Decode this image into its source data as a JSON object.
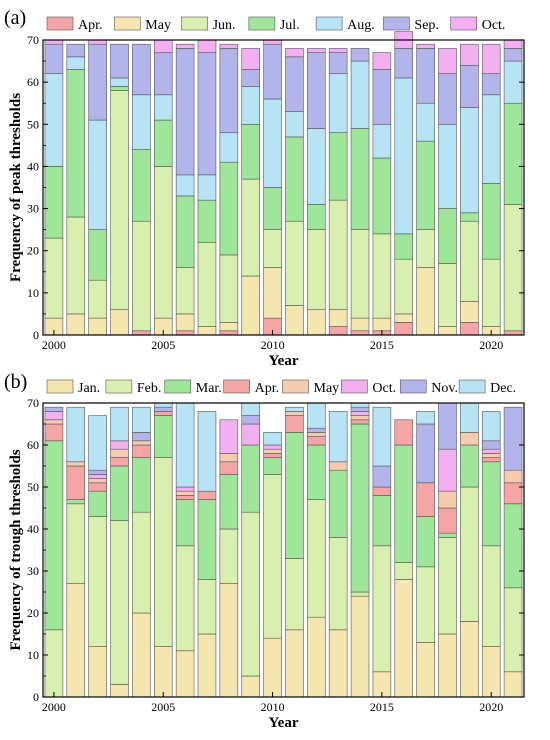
{
  "chart_data": [
    {
      "type": "bar",
      "stacked": true,
      "panel_label": "(a)",
      "ylabel": "Frequency of peak thresholds",
      "xlabel": "Year",
      "ylim": [
        0,
        70
      ],
      "yticks": [
        0,
        10,
        20,
        30,
        40,
        50,
        60,
        70
      ],
      "x": [
        2000,
        2001,
        2002,
        2003,
        2004,
        2005,
        2006,
        2007,
        2008,
        2009,
        2010,
        2011,
        2012,
        2013,
        2014,
        2015,
        2016,
        2017,
        2018,
        2019,
        2020,
        2021
      ],
      "xticks": [
        2000,
        2005,
        2010,
        2015,
        2020
      ],
      "legend": "top",
      "series": [
        {
          "name": "Apr.",
          "color": "#f4a6a6",
          "values": [
            0,
            0,
            0,
            0,
            1,
            0,
            1,
            0,
            1,
            0,
            4,
            0,
            0,
            2,
            1,
            1,
            3,
            0,
            0,
            3,
            0,
            1
          ]
        },
        {
          "name": "May",
          "color": "#f5e6b0",
          "values": [
            4,
            5,
            4,
            6,
            0,
            4,
            4,
            2,
            2,
            14,
            12,
            7,
            6,
            4,
            3,
            3,
            2,
            16,
            2,
            5,
            2,
            0
          ]
        },
        {
          "name": "Jun.",
          "color": "#d8efb0",
          "values": [
            19,
            23,
            9,
            52,
            26,
            36,
            11,
            20,
            16,
            23,
            9,
            20,
            19,
            26,
            21,
            20,
            13,
            9,
            15,
            19,
            16,
            30
          ]
        },
        {
          "name": "Jul.",
          "color": "#9fe59a",
          "values": [
            17,
            35,
            12,
            1,
            17,
            11,
            17,
            10,
            22,
            13,
            10,
            20,
            6,
            16,
            24,
            18,
            6,
            21,
            13,
            2,
            18,
            24
          ]
        },
        {
          "name": "Aug.",
          "color": "#b7e3f5",
          "values": [
            22,
            3,
            26,
            2,
            13,
            6,
            5,
            6,
            7,
            9,
            21,
            6,
            18,
            14,
            16,
            8,
            37,
            9,
            20,
            25,
            21,
            10
          ]
        },
        {
          "name": "Sep.",
          "color": "#b3b5ea",
          "values": [
            7,
            3,
            18,
            8,
            12,
            10,
            30,
            29,
            20,
            4,
            13,
            13,
            18,
            5,
            3,
            13,
            7,
            13,
            12,
            10,
            5,
            3
          ]
        },
        {
          "name": "Oct.",
          "color": "#f2b0f0",
          "values": [
            1,
            0,
            1,
            0,
            0,
            3,
            1,
            3,
            1,
            5,
            1,
            2,
            1,
            1,
            0,
            4,
            4,
            1,
            6,
            5,
            7,
            2
          ]
        }
      ]
    },
    {
      "type": "bar",
      "stacked": true,
      "panel_label": "(b)",
      "ylabel": "Frequency of trough thresholds",
      "xlabel": "Year",
      "ylim": [
        0,
        70
      ],
      "yticks": [
        0,
        10,
        20,
        30,
        40,
        50,
        60,
        70
      ],
      "x": [
        2000,
        2001,
        2002,
        2003,
        2004,
        2005,
        2006,
        2007,
        2008,
        2009,
        2010,
        2011,
        2012,
        2013,
        2014,
        2015,
        2016,
        2017,
        2018,
        2019,
        2020,
        2021
      ],
      "xticks": [
        2000,
        2005,
        2010,
        2015,
        2020
      ],
      "legend": "top",
      "series": [
        {
          "name": "Jan.",
          "color": "#f5e6b0",
          "values": [
            0,
            27,
            12,
            3,
            20,
            12,
            11,
            15,
            27,
            5,
            14,
            16,
            19,
            16,
            24,
            6,
            28,
            13,
            15,
            18,
            12,
            6
          ]
        },
        {
          "name": "Feb.",
          "color": "#d8efb0",
          "values": [
            16,
            19,
            31,
            39,
            24,
            45,
            25,
            13,
            13,
            39,
            39,
            17,
            28,
            22,
            1,
            30,
            4,
            18,
            23,
            32,
            24,
            20
          ]
        },
        {
          "name": "Mar.",
          "color": "#9fe59a",
          "values": [
            45,
            1,
            6,
            13,
            13,
            10,
            11,
            19,
            13,
            16,
            4,
            30,
            13,
            16,
            40,
            12,
            28,
            12,
            1,
            10,
            20,
            20
          ]
        },
        {
          "name": "Apr.",
          "color": "#f4a6a6",
          "values": [
            4,
            8,
            2,
            2,
            3,
            1,
            1,
            2,
            3,
            0,
            1,
            4,
            2,
            0,
            1,
            2,
            6,
            8,
            6,
            0,
            1,
            5
          ]
        },
        {
          "name": "May",
          "color": "#f5ccb0",
          "values": [
            1,
            1,
            1,
            2,
            1,
            0,
            1,
            0,
            2,
            0,
            1,
            1,
            1,
            2,
            1,
            0,
            0,
            0,
            4,
            3,
            1,
            3
          ]
        },
        {
          "name": "Oct.",
          "color": "#f2b0f0",
          "values": [
            2,
            0,
            1,
            2,
            0,
            0,
            1,
            0,
            8,
            5,
            1,
            0,
            0,
            0,
            1,
            0,
            0,
            0,
            10,
            0,
            1,
            0
          ]
        },
        {
          "name": "Nov.",
          "color": "#b3b5ea",
          "values": [
            1,
            0,
            1,
            0,
            2,
            1,
            0,
            0,
            0,
            2,
            0,
            0,
            1,
            0,
            1,
            5,
            0,
            14,
            11,
            0,
            2,
            15
          ]
        },
        {
          "name": "Dec.",
          "color": "#b7e3f5",
          "values": [
            0,
            13,
            13,
            8,
            6,
            1,
            20,
            19,
            0,
            3,
            3,
            1,
            6,
            12,
            1,
            14,
            0,
            3,
            0,
            7,
            7,
            0
          ]
        }
      ]
    }
  ]
}
